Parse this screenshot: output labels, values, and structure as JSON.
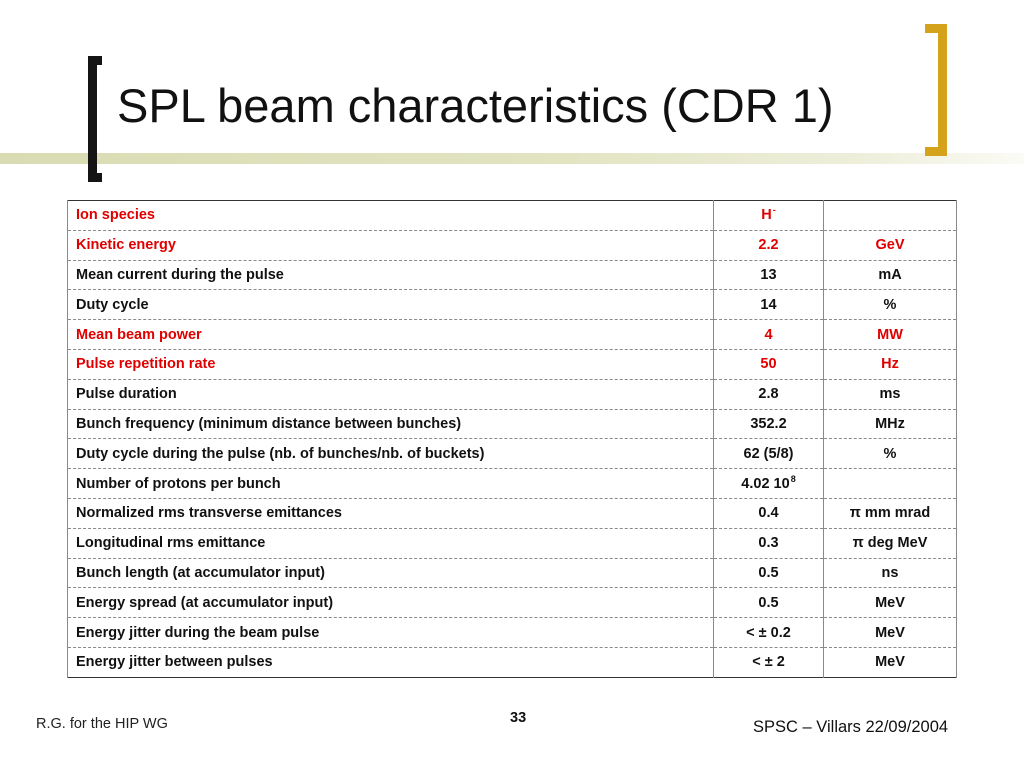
{
  "slide": {
    "title": "SPL beam characteristics (CDR 1)",
    "footer_left": "R.G. for the HIP WG",
    "page_number": "33",
    "footer_right": "SPSC – Villars 22/09/2004"
  },
  "colors": {
    "highlight": "#e00000",
    "bracket_left": "#141414",
    "bracket_right": "#d4a21b",
    "olive_bar": "#d9dcb2"
  },
  "table": {
    "rows": [
      {
        "name": "Ion species",
        "value": "H",
        "value_sup": "-",
        "unit": "",
        "highlight": true
      },
      {
        "name": "Kinetic energy",
        "value": "2.2",
        "unit": "GeV",
        "highlight": true
      },
      {
        "name": "Mean current during the pulse",
        "value": "13",
        "unit": "mA",
        "highlight": false
      },
      {
        "name": "Duty cycle",
        "value": "14",
        "unit": "%",
        "highlight": false
      },
      {
        "name": "Mean beam power",
        "value": "4",
        "unit": "MW",
        "highlight": true
      },
      {
        "name": "Pulse repetition rate",
        "value": "50",
        "unit": "Hz",
        "highlight": true
      },
      {
        "name": "Pulse duration",
        "value": "2.8",
        "unit": "ms",
        "highlight": false
      },
      {
        "name": "Bunch frequency (minimum distance between bunches)",
        "value": "352.2",
        "unit": "MHz",
        "highlight": false
      },
      {
        "name": "Duty cycle during the pulse (nb. of bunches/nb. of buckets)",
        "value": "62 (5/8)",
        "unit": "%",
        "highlight": false
      },
      {
        "name": "Number of protons per bunch",
        "value": "4.02 10",
        "value_sup": "8",
        "unit": "",
        "highlight": false
      },
      {
        "name": "Normalized rms transverse emittances",
        "value": "0.4",
        "unit": "π mm mrad",
        "highlight": false
      },
      {
        "name": "Longitudinal rms emittance",
        "value": "0.3",
        "unit": "π deg MeV",
        "highlight": false
      },
      {
        "name": "Bunch length (at accumulator input)",
        "value": "0.5",
        "unit": "ns",
        "highlight": false
      },
      {
        "name": "Energy spread (at accumulator input)",
        "value": "0.5",
        "unit": "MeV",
        "highlight": false
      },
      {
        "name": "Energy jitter during the beam pulse",
        "value": "< ± 0.2",
        "unit": "MeV",
        "highlight": false
      },
      {
        "name": "Energy jitter between pulses",
        "value": "< ± 2",
        "unit": "MeV",
        "highlight": false
      }
    ]
  }
}
